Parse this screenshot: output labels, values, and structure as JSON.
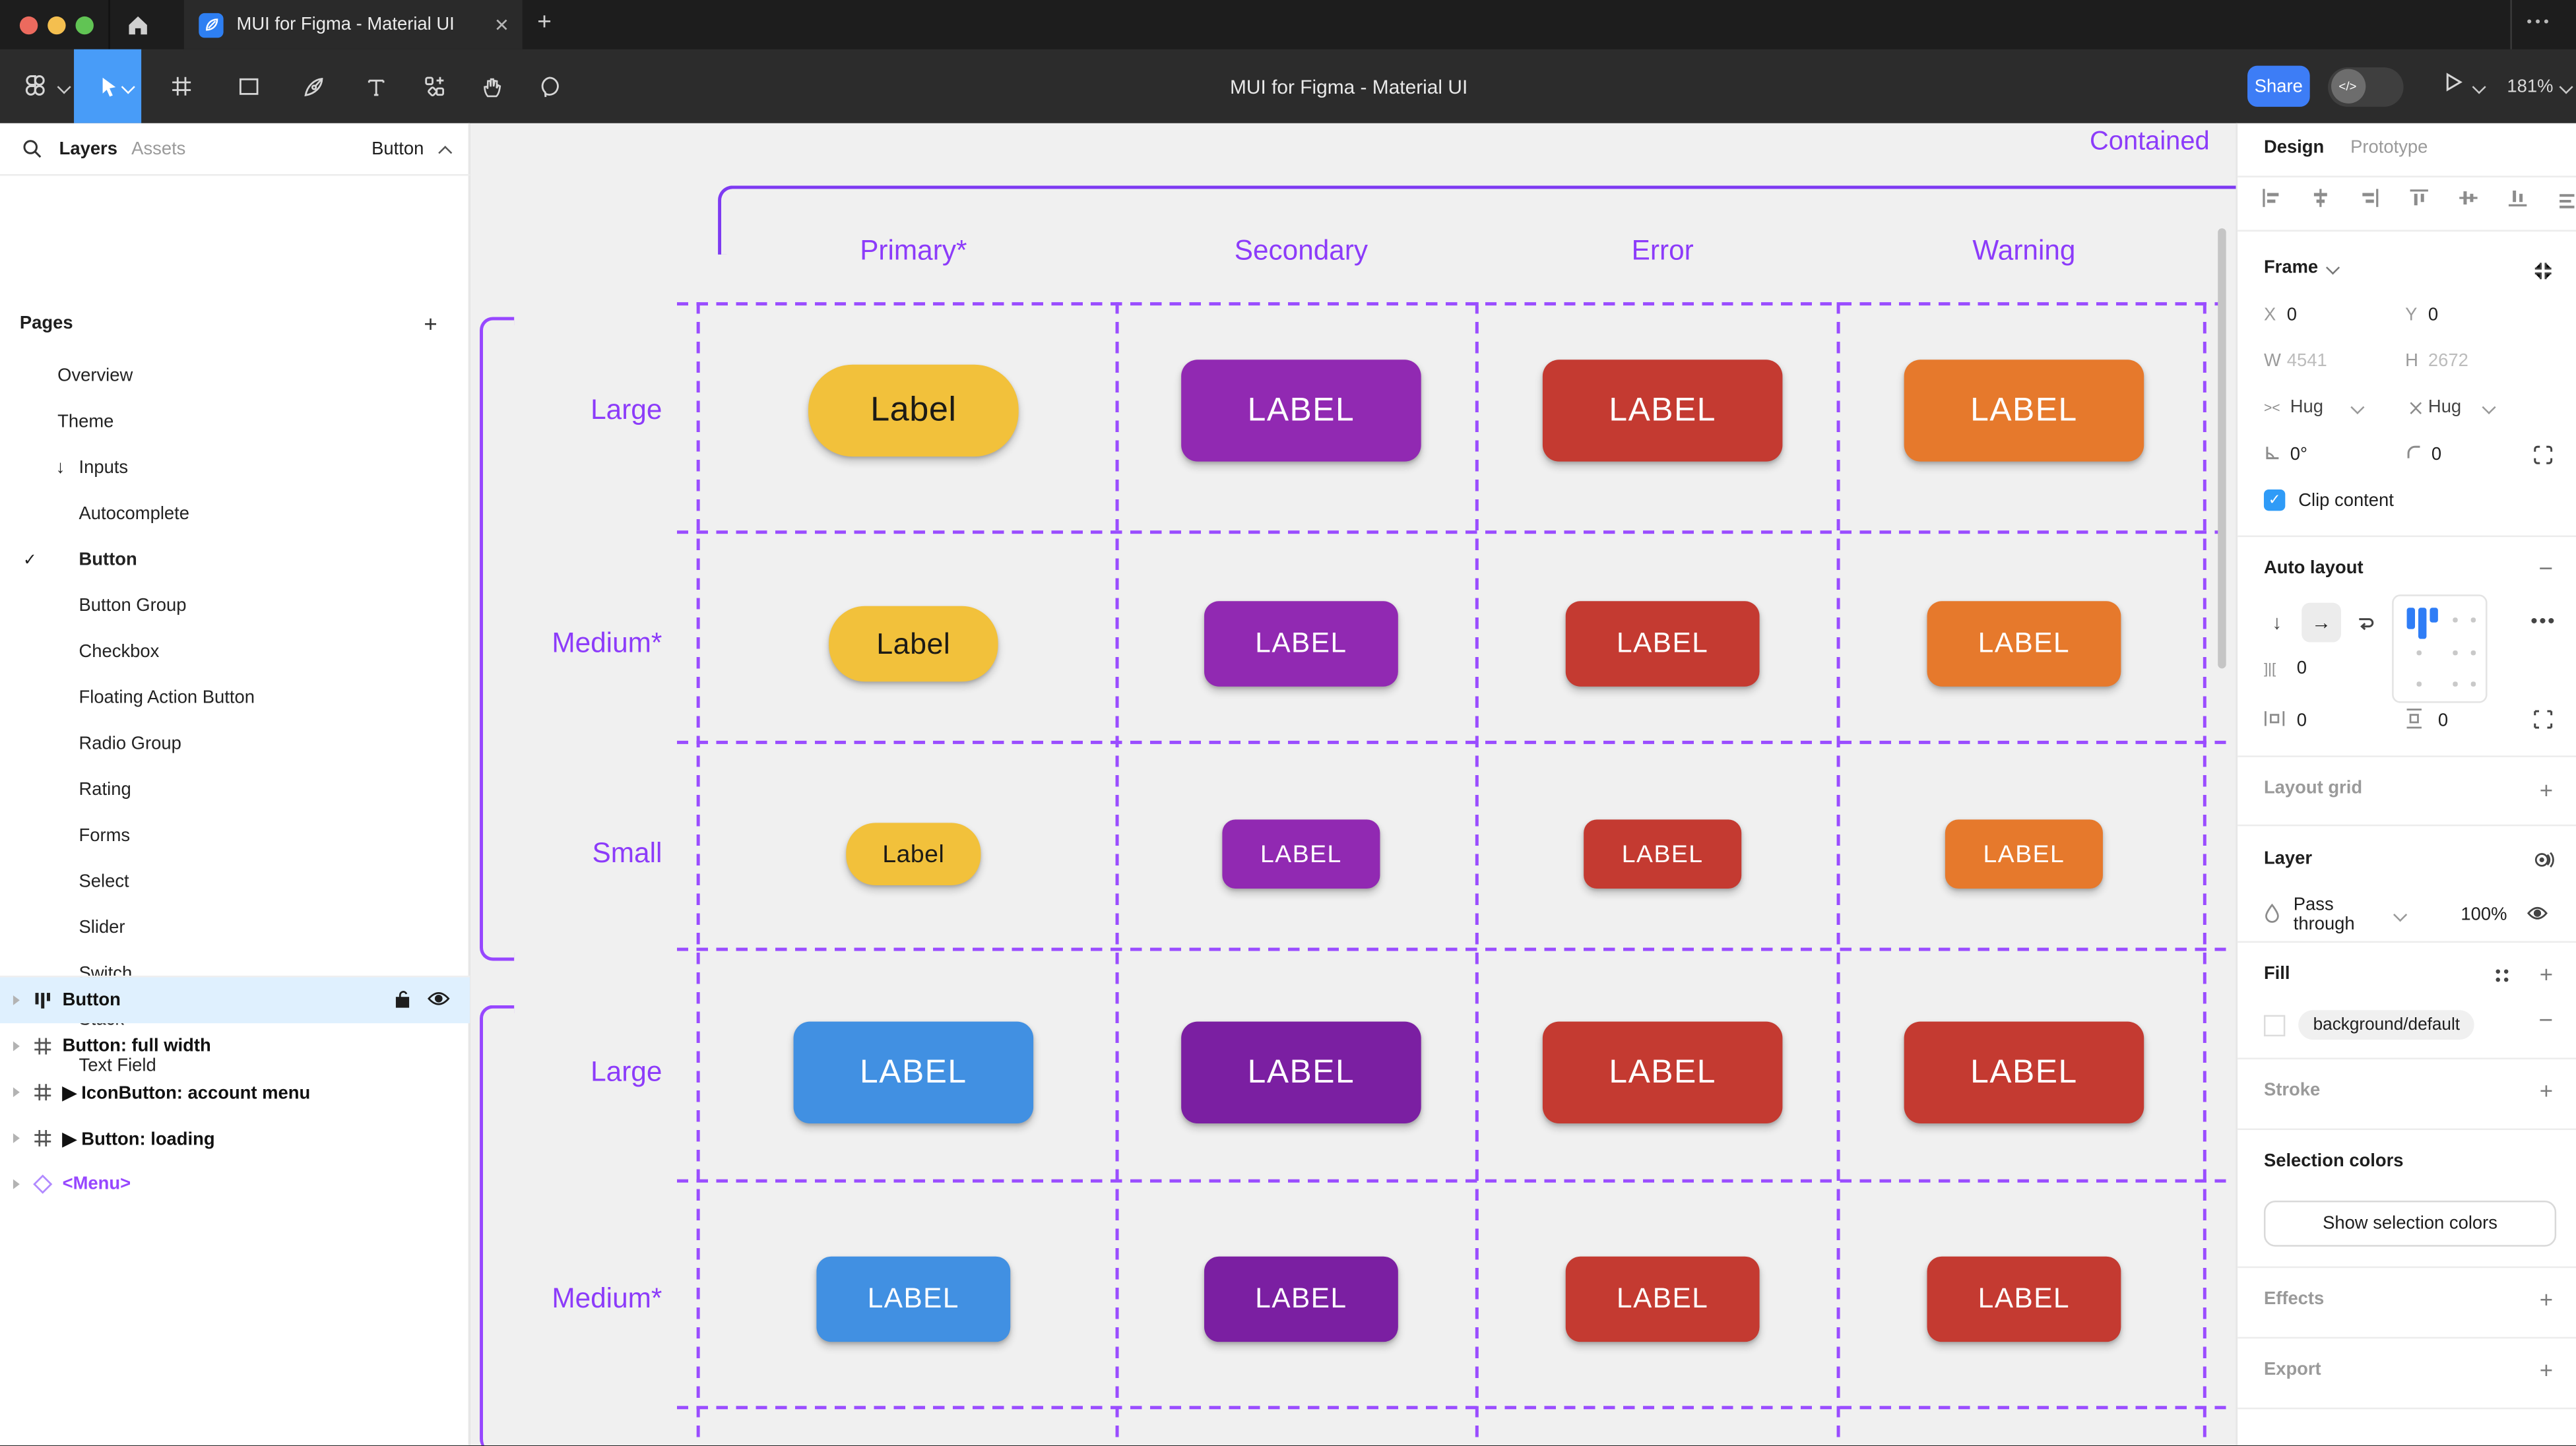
{
  "window": {
    "tab_title": "MUI for Figma - Material UI",
    "close_glyph": "✕",
    "new_tab_glyph": "+",
    "menu_glyph": "•••"
  },
  "toolbar": {
    "title": "MUI for Figma - Material UI",
    "share": "Share",
    "dev_toggle": "</>",
    "zoom": "181%"
  },
  "sidebar": {
    "tab_layers": "Layers",
    "tab_assets": "Assets",
    "page_chip": "Button",
    "pages_title": "Pages",
    "pages": [
      {
        "label": "Overview",
        "indent": 1
      },
      {
        "label": "Theme",
        "indent": 1
      },
      {
        "label": "Inputs",
        "indent": 1,
        "arrow": "↓"
      },
      {
        "label": "Autocomplete",
        "indent": 2
      },
      {
        "label": "Button",
        "indent": 2,
        "checked": true,
        "bold": true
      },
      {
        "label": "Button Group",
        "indent": 2
      },
      {
        "label": "Checkbox",
        "indent": 2
      },
      {
        "label": "Floating Action Button",
        "indent": 2
      },
      {
        "label": "Radio Group",
        "indent": 2
      },
      {
        "label": "Rating",
        "indent": 2
      },
      {
        "label": "Forms",
        "indent": 2
      },
      {
        "label": "Select",
        "indent": 2
      },
      {
        "label": "Slider",
        "indent": 2
      },
      {
        "label": "Switch",
        "indent": 2
      },
      {
        "label": "Stack",
        "indent": 2
      },
      {
        "label": "Text Field",
        "indent": 2
      }
    ],
    "layers": [
      {
        "label": "Button",
        "icon": "autolayout",
        "selected": true
      },
      {
        "label": "Button: full width",
        "icon": "frame"
      },
      {
        "label": "▶ IconButton: account menu",
        "icon": "frame"
      },
      {
        "label": "▶ Button: loading",
        "icon": "frame"
      },
      {
        "label": "<Menu>",
        "icon": "diamond",
        "purple": true
      }
    ]
  },
  "canvas": {
    "frame_label": "Contained",
    "columns": [
      "Primary*",
      "Secondary",
      "Error",
      "Warning"
    ],
    "purple_text": "#8C3BFA",
    "dash_color": "#9A4DFF",
    "rows": [
      {
        "label": "Large",
        "size": "lg",
        "buttons": [
          {
            "text": "Label",
            "bg": "#F2C13B",
            "fg": "#1D1B16",
            "shape": "pill"
          },
          {
            "text": "LABEL",
            "bg": "#9129B2",
            "fg": "#FFFFFF",
            "shape": "rect"
          },
          {
            "text": "LABEL",
            "bg": "#C43A31",
            "fg": "#FFFFFF",
            "shape": "rect"
          },
          {
            "text": "LABEL",
            "bg": "#E6792C",
            "fg": "#FFFFFF",
            "shape": "rect"
          }
        ]
      },
      {
        "label": "Medium*",
        "size": "md",
        "buttons": [
          {
            "text": "Label",
            "bg": "#F2C13B",
            "fg": "#1D1B16",
            "shape": "pill"
          },
          {
            "text": "LABEL",
            "bg": "#9129B2",
            "fg": "#FFFFFF",
            "shape": "rect"
          },
          {
            "text": "LABEL",
            "bg": "#C43A31",
            "fg": "#FFFFFF",
            "shape": "rect"
          },
          {
            "text": "LABEL",
            "bg": "#E6792C",
            "fg": "#FFFFFF",
            "shape": "rect"
          }
        ]
      },
      {
        "label": "Small",
        "size": "sm",
        "buttons": [
          {
            "text": "Label",
            "bg": "#F2C13B",
            "fg": "#1D1B16",
            "shape": "pill"
          },
          {
            "text": "LABEL",
            "bg": "#9129B2",
            "fg": "#FFFFFF",
            "shape": "rect"
          },
          {
            "text": "LABEL",
            "bg": "#C43A31",
            "fg": "#FFFFFF",
            "shape": "rect"
          },
          {
            "text": "LABEL",
            "bg": "#E6792C",
            "fg": "#FFFFFF",
            "shape": "rect"
          }
        ]
      },
      {
        "label": "Large",
        "size": "lg",
        "buttons": [
          {
            "text": "LABEL",
            "bg": "#4190E2",
            "fg": "#FFFFFF",
            "shape": "rect"
          },
          {
            "text": "LABEL",
            "bg": "#7B1FA2",
            "fg": "#FFFFFF",
            "shape": "rect"
          },
          {
            "text": "LABEL",
            "bg": "#C43A31",
            "fg": "#FFFFFF",
            "shape": "rect"
          },
          {
            "text": "LABEL",
            "bg": "#C43A31",
            "fg": "#FFFFFF",
            "shape": "rect"
          }
        ]
      },
      {
        "label": "Medium*",
        "size": "md",
        "buttons": [
          {
            "text": "LABEL",
            "bg": "#4190E2",
            "fg": "#FFFFFF",
            "shape": "rect"
          },
          {
            "text": "LABEL",
            "bg": "#7B1FA2",
            "fg": "#FFFFFF",
            "shape": "rect"
          },
          {
            "text": "LABEL",
            "bg": "#C43A31",
            "fg": "#FFFFFF",
            "shape": "rect"
          },
          {
            "text": "LABEL",
            "bg": "#C43A31",
            "fg": "#FFFFFF",
            "shape": "rect"
          }
        ]
      }
    ]
  },
  "inspector": {
    "tab_design": "Design",
    "tab_prototype": "Prototype",
    "frame": {
      "title": "Frame",
      "x_label": "X",
      "x": "0",
      "y_label": "Y",
      "y": "0",
      "w_label": "W",
      "w": "4541",
      "h_label": "H",
      "h": "2672",
      "hug_h": "Hug",
      "hug_v": "Hug",
      "rotation": "0°",
      "radius": "0",
      "clip": "Clip content"
    },
    "auto_layout": {
      "title": "Auto layout",
      "gap": "0",
      "pad_h": "0",
      "pad_v": "0"
    },
    "layout_grid": {
      "title": "Layout grid"
    },
    "layer": {
      "title": "Layer",
      "blend_mode": "Pass through",
      "opacity": "100%"
    },
    "fill": {
      "title": "Fill",
      "token": "background/default"
    },
    "stroke": {
      "title": "Stroke"
    },
    "selection_colors": {
      "title": "Selection colors",
      "button": "Show selection colors"
    },
    "effects": {
      "title": "Effects"
    },
    "export": {
      "title": "Export"
    }
  }
}
